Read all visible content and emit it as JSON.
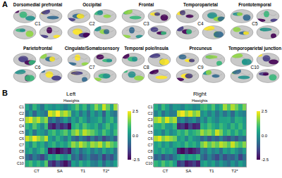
{
  "panel_labels": [
    "A",
    "B"
  ],
  "brain_maps": [
    {
      "title": "Dorsomedial prefrontal",
      "label": "C1"
    },
    {
      "title": "Occipital",
      "label": "C2"
    },
    {
      "title": "Frontal",
      "label": "C3"
    },
    {
      "title": "Temporoparietal",
      "label": "C4"
    },
    {
      "title": "Frontotemporal",
      "label": "C5"
    },
    {
      "title": "Parietofrontal",
      "label": "C6"
    },
    {
      "title": "Cingulate/Somatosensory",
      "label": "C7"
    },
    {
      "title": "Temporal pole/Insula",
      "label": "C8"
    },
    {
      "title": "Precuneus",
      "label": "C9"
    },
    {
      "title": "Temporoparietal junction",
      "label": "C10"
    }
  ],
  "chart_data": [
    {
      "type": "heatmap",
      "title": "Left",
      "subtitle": "Hweights",
      "rows": [
        "C1",
        "C2",
        "C3",
        "C4",
        "C5",
        "C6",
        "C7",
        "C8",
        "C9",
        "C10"
      ],
      "xlim": [
        -0.5,
        23.5
      ],
      "xticks": [
        {
          "value": 2.5,
          "label": "CT"
        },
        {
          "value": 8.5,
          "label": "SA"
        },
        {
          "value": 14.5,
          "label": "T1"
        },
        {
          "value": 20.5,
          "label": "T2*"
        }
      ],
      "color": "viridis",
      "colorbar": {
        "range": [
          -2.5,
          2.5
        ],
        "ticks": [
          -2.5,
          {
            "value": 0,
            "label": "0.0"
          },
          2.5
        ]
      },
      "cells": [
        [
          0.4,
          -0.3,
          0.8,
          0.1,
          -0.6,
          0.5,
          0.2,
          -0.1,
          0.3,
          0.0,
          -0.4,
          0.1,
          0.6,
          1.2,
          0.3,
          0.9,
          -0.2,
          0.7,
          1.6,
          0.9,
          2.1,
          1.3,
          0.4,
          1.8
        ],
        [
          -0.5,
          0.2,
          -0.9,
          0.1,
          -0.3,
          -0.7,
          2.2,
          1.8,
          2.5,
          1.6,
          2.0,
          1.4,
          -0.2,
          0.4,
          -0.6,
          0.1,
          -0.8,
          0.3,
          -0.4,
          0.2,
          -1.0,
          0.5,
          -0.3,
          -0.6
        ],
        [
          1.9,
          2.3,
          1.5,
          2.0,
          1.2,
          1.7,
          -0.8,
          -0.3,
          -1.1,
          -0.5,
          0.2,
          -0.6,
          0.4,
          -0.2,
          0.8,
          0.3,
          -0.5,
          0.1,
          0.2,
          0.7,
          -0.4,
          0.5,
          0.9,
          -0.1
        ],
        [
          0.8,
          0.3,
          1.2,
          0.5,
          -0.2,
          0.9,
          -1.8,
          -2.2,
          -1.4,
          -2.0,
          -1.6,
          -2.4,
          0.5,
          0.9,
          0.2,
          1.1,
          0.6,
          0.3,
          0.7,
          -0.3,
          0.4,
          1.0,
          0.1,
          0.6
        ],
        [
          -0.2,
          0.5,
          -0.6,
          0.3,
          0.1,
          -0.4,
          0.6,
          1.0,
          0.3,
          0.8,
          1.2,
          0.4,
          1.4,
          1.9,
          1.1,
          2.0,
          1.6,
          1.3,
          0.8,
          0.2,
          1.1,
          0.5,
          -0.1,
          0.9
        ],
        [
          2.1,
          1.6,
          2.4,
          1.8,
          1.3,
          2.0,
          0.3,
          -0.2,
          0.7,
          0.1,
          -0.5,
          0.4,
          -0.6,
          -1.1,
          -0.3,
          -0.8,
          -1.4,
          -0.5,
          -1.2,
          -0.6,
          -1.5,
          -0.9,
          -0.3,
          -1.0
        ],
        [
          0.5,
          -0.1,
          0.9,
          0.2,
          0.6,
          -0.3,
          0.4,
          0.8,
          0.1,
          0.6,
          0.2,
          0.9,
          1.7,
          1.2,
          2.0,
          1.5,
          1.0,
          1.8,
          1.5,
          2.0,
          1.1,
          1.8,
          1.3,
          0.9
        ],
        [
          0.2,
          0.6,
          -0.2,
          0.4,
          0.9,
          0.1,
          -2.3,
          -1.9,
          -2.5,
          -2.1,
          -1.7,
          -2.2,
          -0.4,
          0.1,
          -0.8,
          -0.2,
          0.3,
          -0.5,
          0.1,
          -0.4,
          0.5,
          -0.2,
          0.3,
          -0.6
        ],
        [
          -0.7,
          -1.2,
          -0.4,
          -0.9,
          -1.5,
          -0.6,
          0.5,
          0.1,
          0.8,
          0.3,
          -0.2,
          0.6,
          -0.9,
          -0.4,
          -1.3,
          -0.7,
          -0.2,
          -1.0,
          -1.1,
          -0.5,
          -1.6,
          -0.8,
          -1.3,
          -0.4
        ],
        [
          0.6,
          1.0,
          0.3,
          0.8,
          0.2,
          1.2,
          -1.5,
          -2.0,
          -1.2,
          -1.8,
          -2.3,
          -1.6,
          0.3,
          -0.2,
          0.7,
          0.1,
          0.5,
          -0.3,
          -0.5,
          0.2,
          -0.8,
          0.0,
          -0.4,
          0.3
        ]
      ]
    },
    {
      "type": "heatmap",
      "title": "Right",
      "subtitle": "Hweights",
      "rows": [
        "C1",
        "C2",
        "C3",
        "C4",
        "C5",
        "C6",
        "C7",
        "C8",
        "C9",
        "C10"
      ],
      "xlim": [
        -0.5,
        23.5
      ],
      "xticks": [
        {
          "value": 2.5,
          "label": "CT"
        },
        {
          "value": 8.5,
          "label": "SA"
        },
        {
          "value": 14.5,
          "label": "T1"
        },
        {
          "value": 20.5,
          "label": "T2*"
        }
      ],
      "color": "viridis",
      "colorbar": {
        "range": [
          -2.5,
          2.5
        ],
        "ticks": [
          -2.5,
          {
            "value": 0,
            "label": "0.0"
          },
          2.5
        ]
      },
      "cells": [
        [
          0.6,
          -0.1,
          0.9,
          0.3,
          -0.4,
          0.2,
          0.1,
          -0.3,
          0.4,
          0.2,
          -0.2,
          0.0,
          0.8,
          1.0,
          0.5,
          1.1,
          0.1,
          0.6,
          1.8,
          1.1,
          1.9,
          1.4,
          0.7,
          1.5
        ],
        [
          -0.3,
          0.4,
          -0.7,
          0.0,
          -0.5,
          -0.4,
          2.0,
          2.4,
          1.7,
          2.2,
          1.5,
          1.9,
          -0.1,
          0.3,
          -0.4,
          0.2,
          -0.6,
          0.1,
          -0.6,
          0.1,
          -0.8,
          0.3,
          -0.2,
          -0.4
        ],
        [
          1.7,
          2.1,
          1.3,
          2.2,
          1.5,
          1.9,
          -0.6,
          -0.1,
          -0.9,
          -0.4,
          0.0,
          -0.8,
          0.2,
          -0.4,
          0.6,
          0.1,
          -0.3,
          0.4,
          0.4,
          0.5,
          -0.2,
          0.7,
          0.6,
          0.1
        ],
        [
          0.6,
          0.5,
          1.0,
          0.2,
          0.1,
          0.8,
          -2.0,
          -1.7,
          -2.3,
          -1.5,
          -2.1,
          -1.9,
          0.7,
          0.4,
          1.0,
          0.6,
          0.2,
          0.9,
          0.5,
          0.0,
          0.8,
          0.3,
          0.9,
          0.2
        ],
        [
          0.1,
          0.3,
          -0.4,
          0.5,
          -0.2,
          0.2,
          0.9,
          0.5,
          1.1,
          0.4,
          0.7,
          1.0,
          1.8,
          1.3,
          1.6,
          1.0,
          2.1,
          1.5,
          0.6,
          1.0,
          0.3,
          0.9,
          0.2,
          0.7
        ],
        [
          1.9,
          2.3,
          1.5,
          2.0,
          1.7,
          1.4,
          0.1,
          0.5,
          -0.3,
          0.6,
          0.0,
          -0.2,
          -0.9,
          -0.4,
          -1.2,
          -0.6,
          -1.0,
          -0.3,
          -1.0,
          -1.4,
          -0.7,
          -1.2,
          -0.5,
          -0.8
        ],
        [
          0.3,
          0.7,
          0.0,
          0.5,
          -0.2,
          0.4,
          0.6,
          0.2,
          0.9,
          0.4,
          0.7,
          0.1,
          1.4,
          1.9,
          1.2,
          1.7,
          1.3,
          2.0,
          1.7,
          1.2,
          2.1,
          1.4,
          1.0,
          1.6
        ],
        [
          0.4,
          0.0,
          0.7,
          0.2,
          0.5,
          -0.1,
          -2.1,
          -2.4,
          -1.8,
          -2.3,
          -2.0,
          -1.6,
          -0.2,
          -0.6,
          0.2,
          -0.4,
          0.0,
          -0.7,
          0.3,
          -0.1,
          0.6,
          0.0,
          -0.5,
          0.2
        ],
        [
          -0.9,
          -0.5,
          -1.3,
          -0.7,
          -1.1,
          -0.4,
          0.3,
          0.7,
          0.0,
          0.5,
          0.2,
          0.8,
          -0.6,
          -1.1,
          -0.3,
          -0.9,
          -1.4,
          -0.5,
          -1.3,
          -0.8,
          -1.0,
          -0.4,
          -1.5,
          -0.7
        ],
        [
          0.8,
          0.4,
          1.1,
          0.5,
          0.9,
          0.2,
          -1.7,
          -1.3,
          -2.2,
          -1.9,
          -1.5,
          -2.1,
          0.1,
          0.5,
          -0.1,
          0.4,
          -0.4,
          0.2,
          -0.3,
          -0.7,
          0.1,
          -0.5,
          0.3,
          -0.2
        ]
      ]
    }
  ]
}
